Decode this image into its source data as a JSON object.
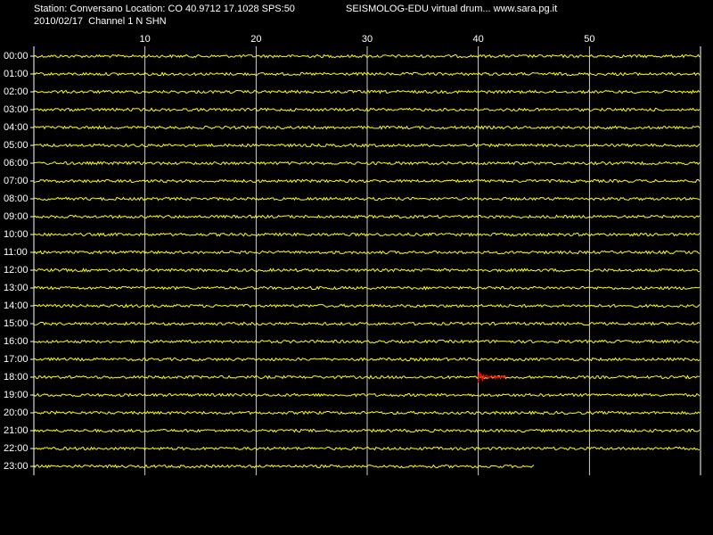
{
  "chart_data": {
    "type": "drum",
    "title": "Station: Conversano Location: CO 40.9712 17.1028 SPS:50",
    "subtitle": "2010/02/17  Channel 1 N SHN",
    "source": "SEISMOLOG-EDU virtual drum... www.sara.pg.it",
    "categories": [
      "00:00",
      "01:00",
      "02:00",
      "03:00",
      "04:00",
      "05:00",
      "06:00",
      "07:00",
      "08:00",
      "09:00",
      "10:00",
      "11:00",
      "12:00",
      "13:00",
      "14:00",
      "15:00",
      "16:00",
      "17:00",
      "18:00",
      "19:00",
      "20:00",
      "21:00",
      "22:00",
      "23:00"
    ],
    "values": [
      60,
      60,
      60,
      60,
      60,
      60,
      60,
      60,
      60,
      60,
      60,
      60,
      60,
      60,
      60,
      60,
      60,
      60,
      60,
      60,
      60,
      60,
      60,
      45
    ],
    "color": "#ffff00",
    "event": {
      "row": "18:00",
      "start": 40,
      "end": 42.5,
      "color": "#ff0000"
    },
    "xlim": [
      0,
      60
    ],
    "xticks": [
      10,
      20,
      30,
      40,
      50
    ],
    "grid": true
  }
}
